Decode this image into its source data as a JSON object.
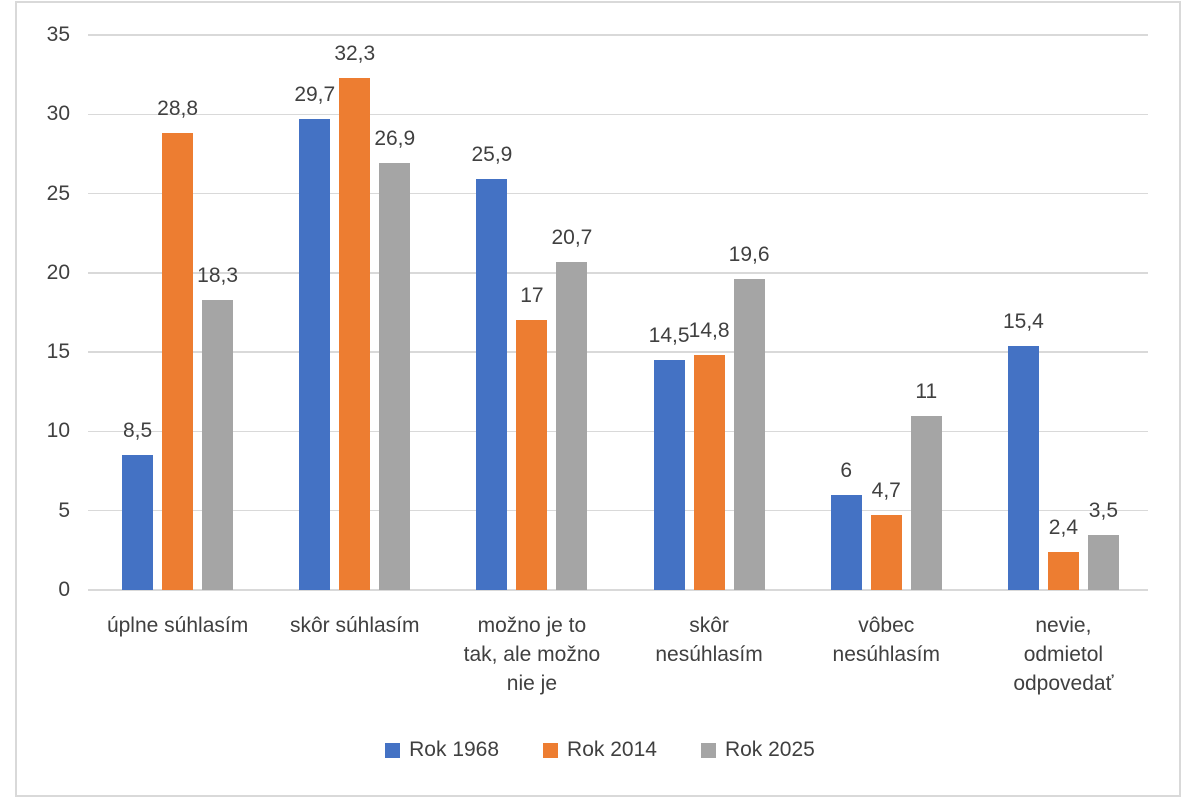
{
  "chart_data": {
    "type": "bar",
    "title": "",
    "xlabel": "",
    "ylabel": "",
    "categories": [
      "úplne súhlasím",
      "skôr súhlasím",
      "možno je to tak, ale možno nie je",
      "skôr nesúhlasím",
      "vôbec nesúhlasím",
      "nevie, odmietol odpovedať"
    ],
    "category_lines": [
      [
        "úplne súhlasím"
      ],
      [
        "skôr súhlasím"
      ],
      [
        "možno je to",
        "tak, ale možno",
        "nie je"
      ],
      [
        "skôr",
        "nesúhlasím"
      ],
      [
        "vôbec",
        "nesúhlasím"
      ],
      [
        "nevie,",
        "odmietol",
        "odpovedať"
      ]
    ],
    "series": [
      {
        "name": "Rok 1968",
        "color": "#4472C4",
        "values": [
          8.5,
          29.7,
          25.9,
          14.5,
          6,
          15.4
        ],
        "value_labels": [
          "8,5",
          "29,7",
          "25,9",
          "14,5",
          "6",
          "15,4"
        ]
      },
      {
        "name": "Rok 2014",
        "color": "#ED7D31",
        "values": [
          28.8,
          32.3,
          17,
          14.8,
          4.7,
          2.4
        ],
        "value_labels": [
          "28,8",
          "32,3",
          "17",
          "14,8",
          "4,7",
          "2,4"
        ]
      },
      {
        "name": "Rok 2025",
        "color": "#A5A5A5",
        "values": [
          18.3,
          26.9,
          20.7,
          19.6,
          11,
          3.5
        ],
        "value_labels": [
          "18,3",
          "26,9",
          "20,7",
          "19,6",
          "11",
          "3,5"
        ]
      }
    ],
    "ylim": [
      0,
      35
    ],
    "ytick_labels": [
      "0",
      "5",
      "10",
      "15",
      "20",
      "25",
      "30",
      "35"
    ],
    "grid": true,
    "legend_position": "bottom"
  },
  "style": {
    "background": "#FFFFFF",
    "frame_border_color": "#D9D9D9",
    "gridline_color": "#D9D9D9",
    "text_color": "#404040"
  }
}
